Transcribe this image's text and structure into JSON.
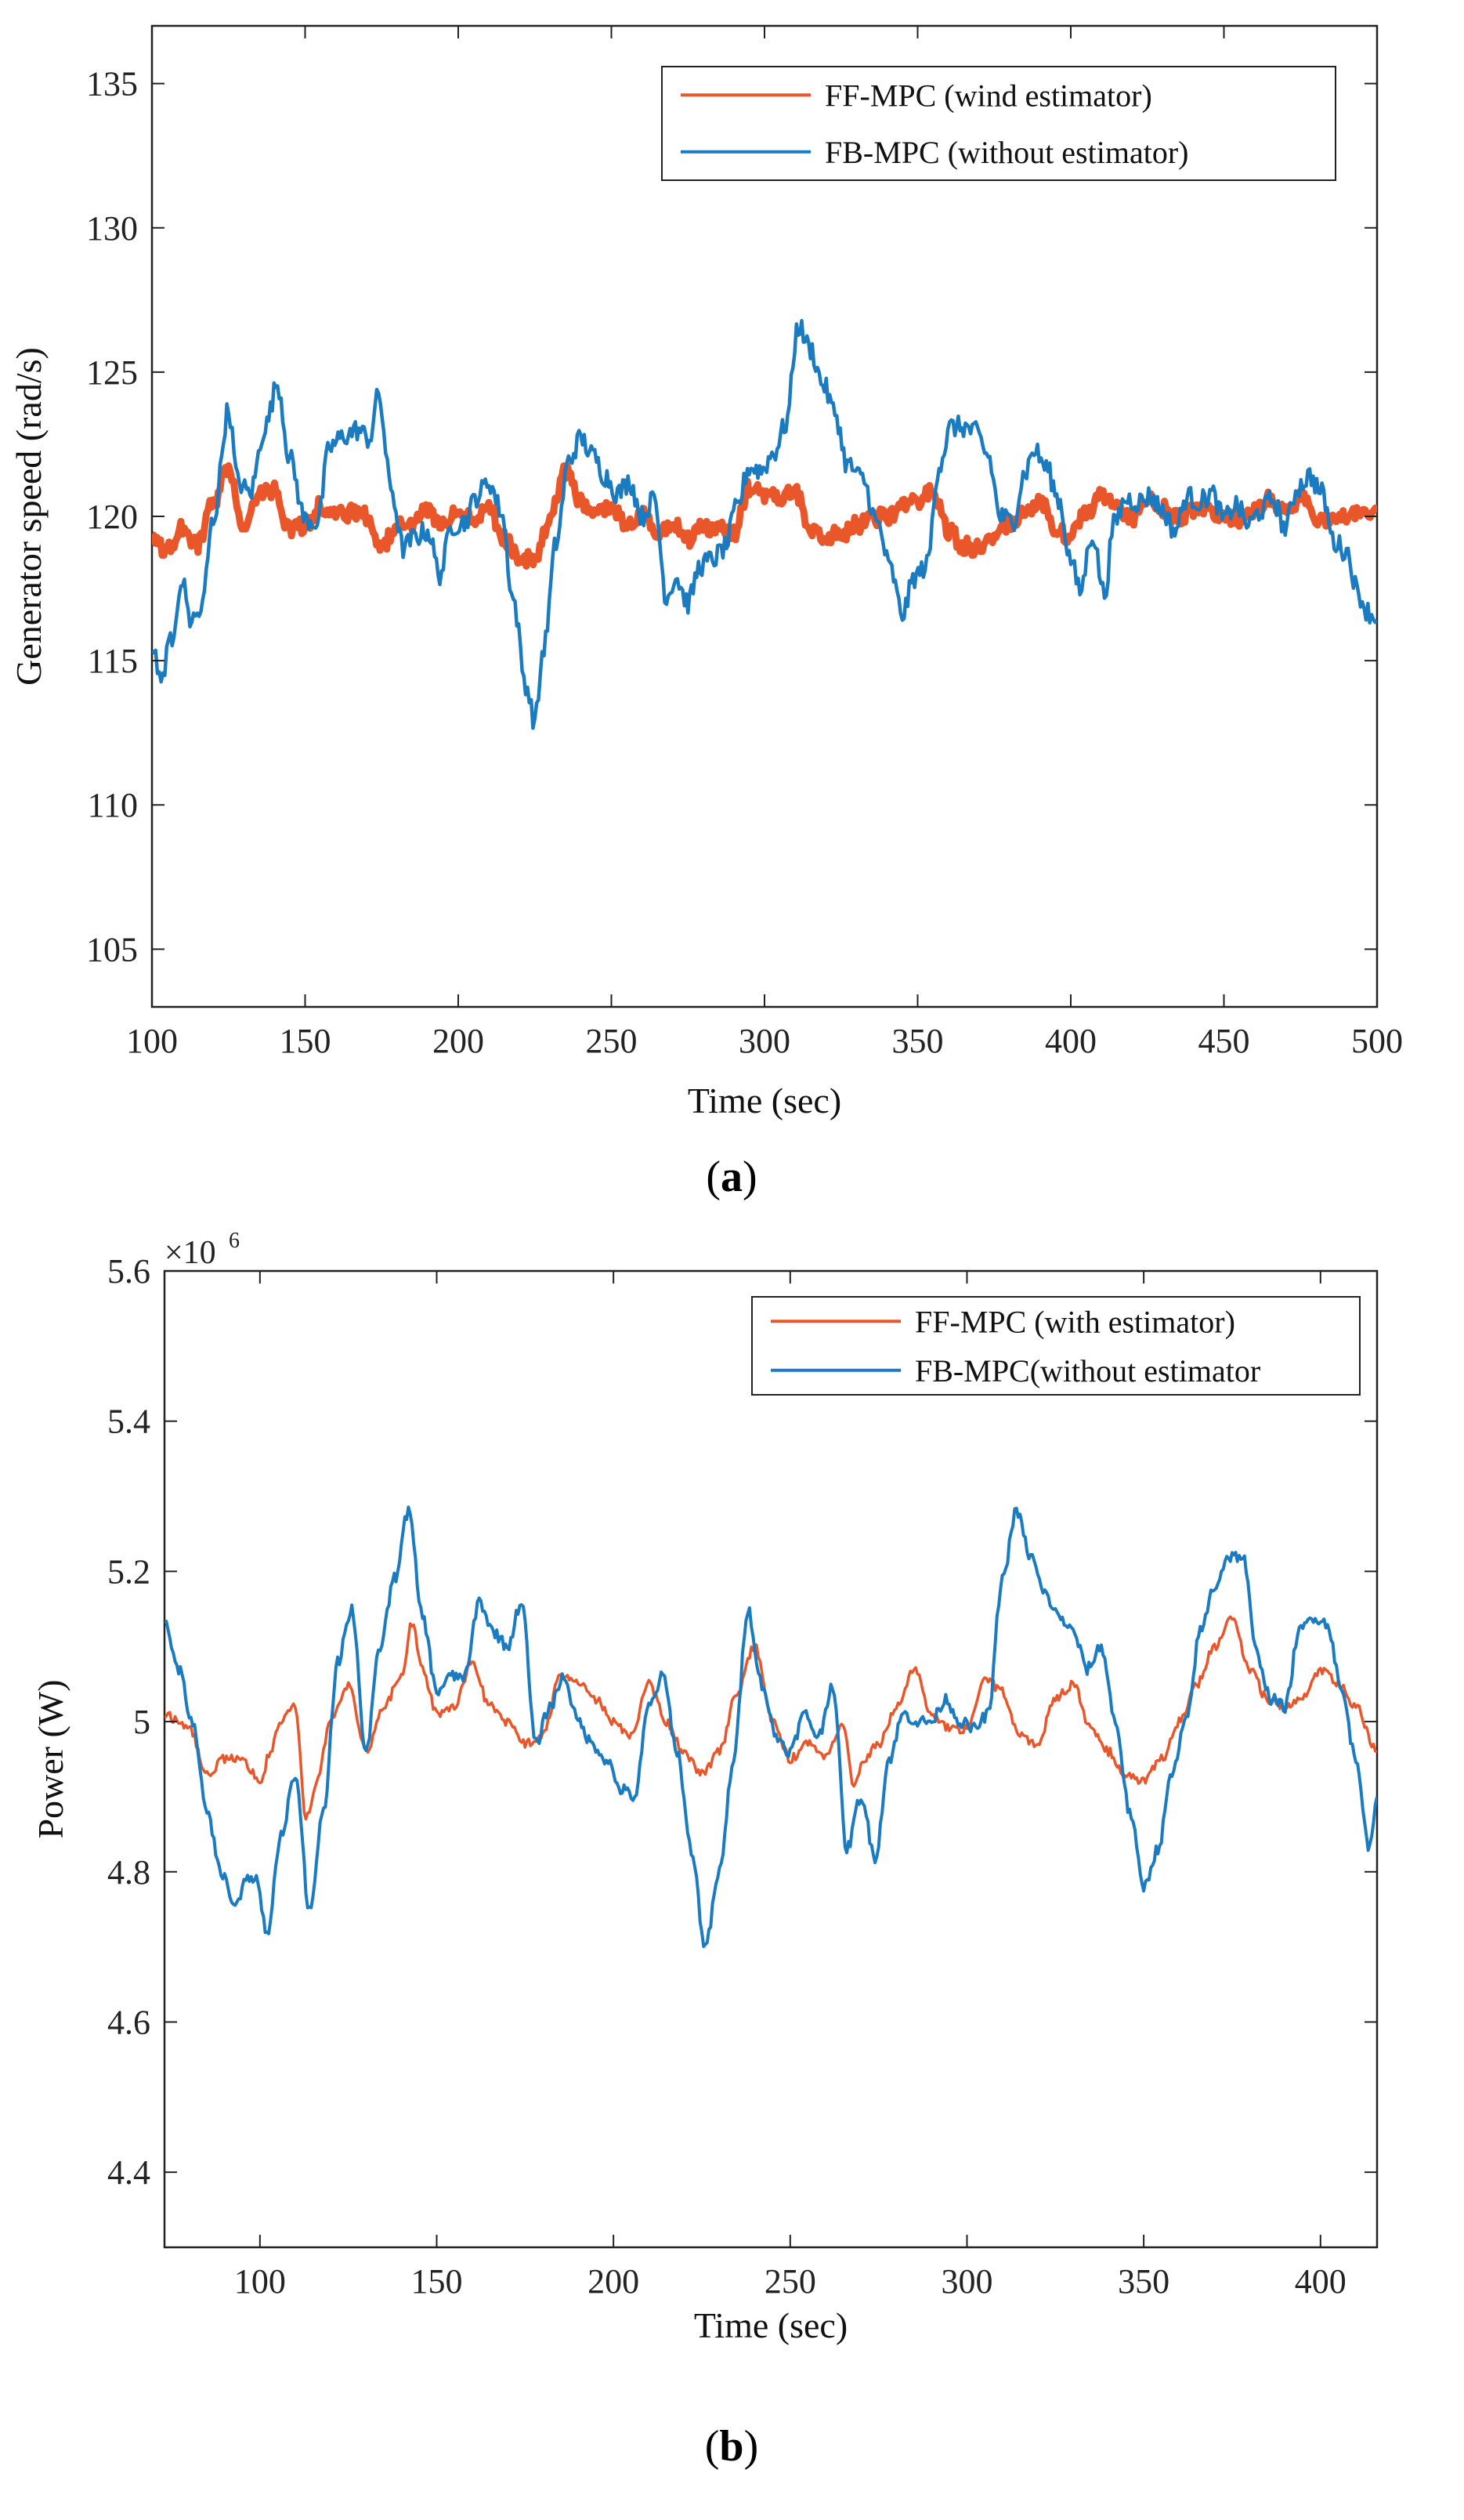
{
  "colors": {
    "ff": "#e8562a",
    "fb": "#1b7bc0",
    "axis": "#222222"
  },
  "chart_data": [
    {
      "type": "line",
      "panel_label": "(a)",
      "panel_letter": "a",
      "xlabel": "Time (sec)",
      "ylabel": "Generator speed (rad/s)",
      "xlim": [
        100,
        500
      ],
      "ylim": [
        103,
        137
      ],
      "xticks": [
        100,
        150,
        200,
        250,
        300,
        350,
        400,
        450,
        500
      ],
      "yticks": [
        105,
        110,
        115,
        120,
        125,
        130,
        135
      ],
      "legend_position": "top-right",
      "series": [
        {
          "name": "FF-MPC (wind estimator)",
          "color_key": "ff",
          "width": 9,
          "noise": 0.3,
          "x": [
            100,
            105,
            110,
            115,
            120,
            125,
            130,
            135,
            140,
            145,
            150,
            155,
            160,
            165,
            170,
            175,
            180,
            185,
            190,
            195,
            200,
            205,
            210,
            215,
            220,
            225,
            230,
            235,
            240,
            245,
            250,
            255,
            260,
            265,
            270,
            275,
            280,
            285,
            290,
            295,
            300,
            305,
            310,
            315,
            320,
            325,
            330,
            335,
            340,
            345,
            350,
            355,
            360,
            365,
            370,
            375,
            380,
            385,
            390,
            395,
            400,
            405,
            410,
            415,
            420,
            425,
            430,
            435,
            440,
            445,
            450,
            455,
            460,
            465,
            470,
            475,
            480,
            485,
            490,
            495,
            500
          ],
          "y": [
            119.2,
            118.8,
            119.6,
            119.0,
            120.5,
            121.7,
            119.4,
            120.8,
            120.9,
            119.5,
            119.7,
            120.4,
            120.0,
            120.1,
            120.0,
            118.9,
            119.8,
            119.7,
            120.2,
            119.7,
            120.3,
            120.0,
            120.3,
            119.2,
            118.6,
            118.4,
            120.0,
            121.6,
            120.5,
            120.0,
            120.3,
            119.7,
            120.0,
            119.4,
            119.8,
            119.2,
            119.6,
            119.6,
            119.4,
            121.0,
            120.8,
            120.6,
            120.9,
            119.6,
            119.3,
            119.4,
            119.7,
            119.9,
            120.0,
            120.3,
            120.5,
            120.9,
            119.5,
            119.0,
            118.9,
            119.3,
            119.8,
            120.2,
            120.5,
            119.6,
            119.3,
            120.1,
            120.8,
            120.3,
            119.9,
            120.6,
            120.3,
            119.9,
            120.2,
            120.3,
            120.0,
            119.9,
            120.2,
            120.6,
            120.2,
            120.6,
            120.0,
            119.8,
            120.1,
            120.1,
            120.2
          ]
        },
        {
          "name": "FB-MPC (without estimator)",
          "color_key": "fb",
          "width": 4.5,
          "noise": 0.38,
          "x": [
            100,
            103,
            106,
            110,
            113,
            116,
            120,
            125,
            128,
            132,
            137,
            141,
            145,
            150,
            154,
            158,
            163,
            167,
            171,
            174,
            178,
            182,
            186,
            190,
            194,
            198,
            202,
            206,
            210,
            214,
            218,
            222,
            225,
            228,
            232,
            236,
            240,
            244,
            248,
            252,
            256,
            260,
            264,
            268,
            271,
            275,
            279,
            283,
            287,
            291,
            295,
            299,
            303,
            307,
            311,
            315,
            319,
            323,
            327,
            332,
            337,
            341,
            345,
            349,
            353,
            357,
            361,
            365,
            369,
            373,
            377,
            381,
            385,
            388,
            392,
            396,
            400,
            403,
            407,
            411,
            414,
            418,
            422,
            426,
            430,
            434,
            438,
            442,
            446,
            450,
            454,
            458,
            462,
            466,
            470,
            474,
            478,
            482,
            486,
            490,
            494,
            497,
            500
          ],
          "y": [
            115.5,
            114.4,
            115.6,
            117.7,
            116.4,
            116.7,
            119.9,
            123.7,
            121.2,
            120.8,
            123.1,
            124.6,
            122.0,
            119.9,
            119.8,
            122.4,
            122.8,
            123.0,
            122.7,
            124.2,
            121.0,
            118.9,
            119.3,
            119.5,
            118.0,
            119.7,
            119.8,
            120.7,
            121.2,
            120.2,
            117.1,
            114.2,
            112.9,
            115.5,
            119.1,
            121.9,
            122.7,
            122.1,
            121.4,
            120.8,
            121.2,
            120.0,
            120.6,
            117.2,
            117.9,
            117.0,
            118.3,
            118.5,
            118.9,
            120.3,
            121.7,
            121.6,
            122.2,
            123.2,
            126.6,
            125.8,
            124.6,
            123.6,
            121.8,
            121.3,
            119.7,
            118.2,
            116.6,
            117.9,
            118.3,
            121.8,
            123.1,
            123.1,
            122.9,
            122.1,
            120.0,
            119.8,
            121.5,
            122.3,
            121.7,
            120.6,
            118.5,
            117.4,
            119.4,
            117.3,
            119.7,
            120.6,
            120.5,
            120.7,
            120.2,
            119.5,
            120.7,
            120.5,
            120.8,
            119.9,
            120.4,
            119.7,
            120.2,
            120.6,
            119.6,
            121.0,
            121.4,
            120.8,
            119.1,
            118.8,
            117.3,
            116.7,
            116.4
          ]
        }
      ]
    },
    {
      "type": "line",
      "panel_label": "(b)",
      "panel_letter": "b",
      "xlabel": "Time (sec)",
      "ylabel": "Power (W)",
      "exponent_base": "×10",
      "exponent_power": "6",
      "xlim": [
        73,
        416
      ],
      "ylim": [
        4.3,
        5.6
      ],
      "xticks": [
        100,
        150,
        200,
        250,
        300,
        350,
        400
      ],
      "yticks": [
        4.4,
        4.6,
        4.8,
        5,
        5.2,
        5.4,
        5.6
      ],
      "ytick_labels": [
        "4.4",
        "4.6",
        "4.8",
        "5",
        "5.2",
        "5.4",
        "5.6"
      ],
      "legend_position": "top-right",
      "series": [
        {
          "name": "FF-MPC (with estimator)",
          "color_key": "ff",
          "width": 3.5,
          "noise": 0.006,
          "x": [
            73,
            80,
            85,
            90,
            95,
            100,
            103,
            106,
            110,
            113,
            116,
            120,
            125,
            130,
            135,
            140,
            143,
            146,
            150,
            155,
            160,
            165,
            170,
            175,
            180,
            185,
            190,
            195,
            200,
            205,
            210,
            215,
            220,
            225,
            230,
            235,
            240,
            245,
            250,
            255,
            260,
            265,
            268,
            271,
            275,
            280,
            285,
            290,
            295,
            300,
            305,
            310,
            315,
            320,
            325,
            330,
            335,
            340,
            345,
            350,
            355,
            360,
            365,
            370,
            375,
            380,
            385,
            390,
            395,
            400,
            405,
            410,
            416
          ],
          "y": [
            5.01,
            4.99,
            4.93,
            4.95,
            4.95,
            4.92,
            4.96,
            5.0,
            5.02,
            4.87,
            4.92,
            5.0,
            5.05,
            4.96,
            5.02,
            5.06,
            5.13,
            5.07,
            5.01,
            5.02,
            5.08,
            5.02,
            5.0,
            4.97,
            4.98,
            5.06,
            5.05,
            5.03,
            5.0,
            4.98,
            5.05,
            5.0,
            4.96,
            4.93,
            4.96,
            5.04,
            5.1,
            5.0,
            4.95,
            4.97,
            4.95,
            5.0,
            4.91,
            4.95,
            4.97,
            5.02,
            5.07,
            5.01,
            4.99,
            4.99,
            5.06,
            5.04,
            4.98,
            4.97,
            5.03,
            5.05,
            4.99,
            4.96,
            4.93,
            4.92,
            4.95,
            5.0,
            5.05,
            5.1,
            5.14,
            5.07,
            5.03,
            5.02,
            5.03,
            5.07,
            5.05,
            5.02,
            4.96
          ]
        },
        {
          "name": "FB-MPC(without estimator",
          "color_key": "fb",
          "width": 4,
          "noise": 0.008,
          "x": [
            73,
            77,
            81,
            85,
            89,
            93,
            96,
            99,
            102,
            106,
            110,
            114,
            118,
            122,
            126,
            130,
            134,
            138,
            142,
            146,
            150,
            154,
            158,
            162,
            166,
            170,
            174,
            178,
            182,
            186,
            190,
            194,
            198,
            202,
            206,
            210,
            214,
            218,
            222,
            226,
            230,
            234,
            238,
            242,
            246,
            250,
            254,
            258,
            262,
            266,
            270,
            274,
            278,
            282,
            286,
            290,
            294,
            298,
            302,
            306,
            310,
            314,
            318,
            322,
            326,
            330,
            334,
            338,
            342,
            346,
            350,
            354,
            358,
            362,
            366,
            370,
            374,
            378,
            382,
            386,
            390,
            394,
            398,
            402,
            406,
            410,
            414,
            416
          ],
          "y": [
            5.13,
            5.07,
            5.0,
            4.88,
            4.8,
            4.75,
            4.79,
            4.79,
            4.72,
            4.85,
            4.93,
            4.75,
            4.88,
            5.08,
            5.15,
            4.96,
            5.1,
            5.19,
            5.28,
            5.14,
            5.04,
            5.06,
            5.06,
            5.16,
            5.12,
            5.1,
            5.16,
            4.97,
            5.02,
            5.06,
            5.0,
            4.97,
            4.95,
            4.91,
            4.9,
            5.02,
            5.06,
            4.96,
            4.83,
            4.7,
            4.8,
            4.95,
            5.15,
            5.05,
            4.98,
            4.96,
            5.01,
            4.98,
            5.05,
            4.83,
            4.9,
            4.82,
            4.95,
            5.01,
            5.0,
            5.0,
            5.03,
            5.0,
            4.99,
            5.01,
            5.19,
            5.28,
            5.22,
            5.17,
            5.14,
            5.12,
            5.07,
            5.1,
            5.0,
            4.88,
            4.78,
            4.83,
            4.93,
            5.0,
            5.12,
            5.18,
            5.22,
            5.22,
            5.09,
            5.03,
            5.02,
            5.12,
            5.14,
            5.13,
            5.04,
            4.95,
            4.83,
            4.9
          ]
        }
      ]
    }
  ]
}
